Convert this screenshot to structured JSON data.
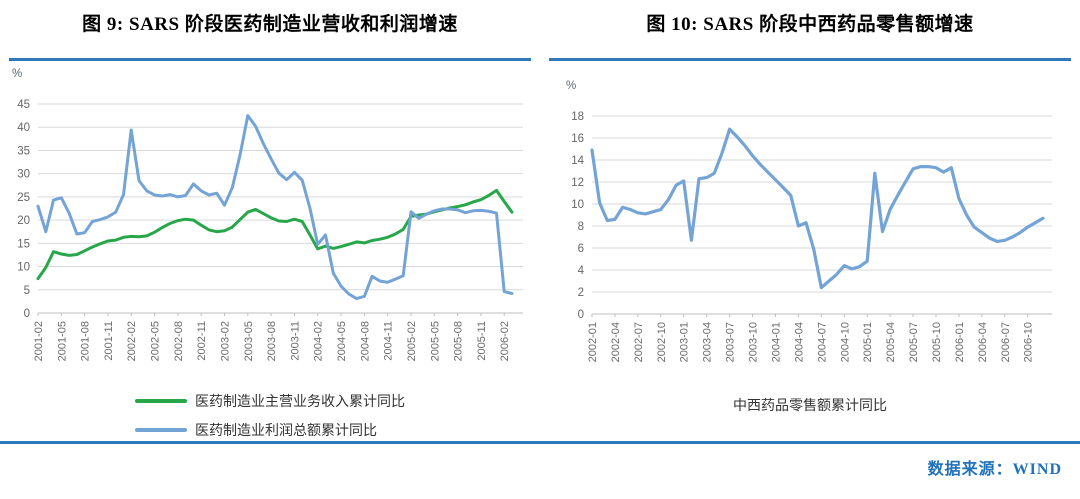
{
  "source_note": "数据来源：WIND",
  "accent_colors": {
    "rule_blue": "#2e79bc",
    "source_text_blue": "#2272b9"
  },
  "chart_data": [
    {
      "type": "line",
      "title": "图 9: SARS 阶段医药制造业营收和利润增速",
      "unit_label": "%",
      "ylim": [
        0,
        45
      ],
      "ytick_step": 5,
      "grid": true,
      "legend_position": "bottom",
      "x_label_every": 3,
      "x": [
        "2001-02",
        "2001-03",
        "2001-04",
        "2001-05",
        "2001-06",
        "2001-07",
        "2001-08",
        "2001-09",
        "2001-10",
        "2001-11",
        "2001-12",
        "2002-01",
        "2002-02",
        "2002-03",
        "2002-04",
        "2002-05",
        "2002-06",
        "2002-07",
        "2002-08",
        "2002-09",
        "2002-10",
        "2002-11",
        "2002-12",
        "2003-01",
        "2003-02",
        "2003-03",
        "2003-04",
        "2003-05",
        "2003-06",
        "2003-07",
        "2003-08",
        "2003-09",
        "2003-10",
        "2003-11",
        "2003-12",
        "2004-01",
        "2004-02",
        "2004-03",
        "2004-04",
        "2004-05",
        "2004-06",
        "2004-07",
        "2004-08",
        "2004-09",
        "2004-10",
        "2004-11",
        "2004-12",
        "2005-01",
        "2005-02",
        "2005-03",
        "2005-04",
        "2005-05",
        "2005-06",
        "2005-07",
        "2005-08",
        "2005-09",
        "2005-10",
        "2005-11",
        "2005-12",
        "2006-01",
        "2006-02",
        "2006-03"
      ],
      "series": [
        {
          "name": "医药制造业主营业务收入累计同比",
          "color": "#27a74a",
          "values": [
            7.4,
            9.8,
            13.2,
            12.7,
            12.4,
            12.6,
            13.4,
            14.2,
            14.9,
            15.5,
            15.7,
            16.3,
            16.5,
            16.4,
            16.6,
            17.4,
            18.4,
            19.3,
            19.9,
            20.2,
            20.0,
            18.9,
            17.9,
            17.5,
            17.7,
            18.5,
            20.1,
            21.7,
            22.3,
            21.4,
            20.5,
            19.8,
            19.7,
            20.2,
            19.7,
            16.8,
            13.8,
            14.4,
            13.9,
            14.3,
            14.8,
            15.3,
            15.1,
            15.6,
            15.9,
            16.3,
            17.0,
            18.0,
            20.8,
            21.1,
            21.3,
            21.8,
            22.2,
            22.6,
            22.9,
            23.3,
            23.9,
            24.4,
            25.3,
            26.4,
            24.0,
            21.7
          ]
        },
        {
          "name": "医药制造业利润总额累计同比",
          "color": "#74a3d6",
          "values": [
            23.0,
            17.5,
            24.3,
            24.8,
            21.5,
            17.0,
            17.3,
            19.7,
            20.1,
            20.7,
            21.7,
            25.5,
            39.4,
            28.5,
            26.3,
            25.4,
            25.2,
            25.5,
            25.0,
            25.3,
            27.8,
            26.3,
            25.4,
            25.8,
            23.2,
            27.0,
            34.0,
            42.5,
            40.2,
            36.5,
            33.2,
            30.1,
            28.7,
            30.3,
            28.6,
            22.5,
            14.8,
            16.8,
            8.6,
            5.8,
            4.1,
            3.1,
            3.6,
            7.9,
            6.9,
            6.6,
            7.3,
            8.0,
            21.8,
            20.4,
            21.3,
            22.0,
            22.4,
            22.4,
            22.2,
            21.6,
            22.0,
            22.1,
            21.9,
            21.5,
            4.6,
            4.2
          ]
        }
      ]
    },
    {
      "type": "line",
      "title": "图 10: SARS 阶段中西药品零售额增速",
      "unit_label": "%",
      "ylim": [
        0,
        18
      ],
      "ytick_step": 2,
      "grid": true,
      "legend_position": "bottom",
      "x_label_every": 3,
      "x": [
        "2002-01",
        "2002-02",
        "2002-03",
        "2002-04",
        "2002-05",
        "2002-06",
        "2002-07",
        "2002-08",
        "2002-09",
        "2002-10",
        "2002-11",
        "2002-12",
        "2003-01",
        "2003-02",
        "2003-03",
        "2003-04",
        "2003-05",
        "2003-06",
        "2003-07",
        "2003-08",
        "2003-09",
        "2003-10",
        "2003-11",
        "2003-12",
        "2004-01",
        "2004-02",
        "2004-03",
        "2004-04",
        "2004-05",
        "2004-06",
        "2004-07",
        "2004-08",
        "2004-09",
        "2004-10",
        "2004-11",
        "2004-12",
        "2005-01",
        "2005-02",
        "2005-03",
        "2005-04",
        "2005-05",
        "2005-06",
        "2005-07",
        "2005-08",
        "2005-09",
        "2005-10",
        "2005-11",
        "2005-12",
        "2006-01",
        "2006-02",
        "2006-03",
        "2006-04",
        "2006-05",
        "2006-06",
        "2006-07",
        "2006-08",
        "2006-09",
        "2006-10",
        "2006-11",
        "2006-12"
      ],
      "series": [
        {
          "name": "中西药品零售额累计同比",
          "color": "#74a3d6",
          "values": [
            14.9,
            10.1,
            8.5,
            8.6,
            9.7,
            9.5,
            9.2,
            9.1,
            9.3,
            9.5,
            10.4,
            11.7,
            12.1,
            6.7,
            12.3,
            12.4,
            12.8,
            14.6,
            16.8,
            16.1,
            15.3,
            14.4,
            13.6,
            12.9,
            12.2,
            11.5,
            10.8,
            8.0,
            8.3,
            5.9,
            2.4,
            3.0,
            3.6,
            4.4,
            4.1,
            4.3,
            4.8,
            12.8,
            7.5,
            9.5,
            10.8,
            12.0,
            13.2,
            13.4,
            13.4,
            13.3,
            12.9,
            13.3,
            10.5,
            9.0,
            7.9,
            7.4,
            6.9,
            6.6,
            6.7,
            7.0,
            7.4,
            7.9,
            8.3,
            8.7
          ]
        }
      ]
    }
  ]
}
